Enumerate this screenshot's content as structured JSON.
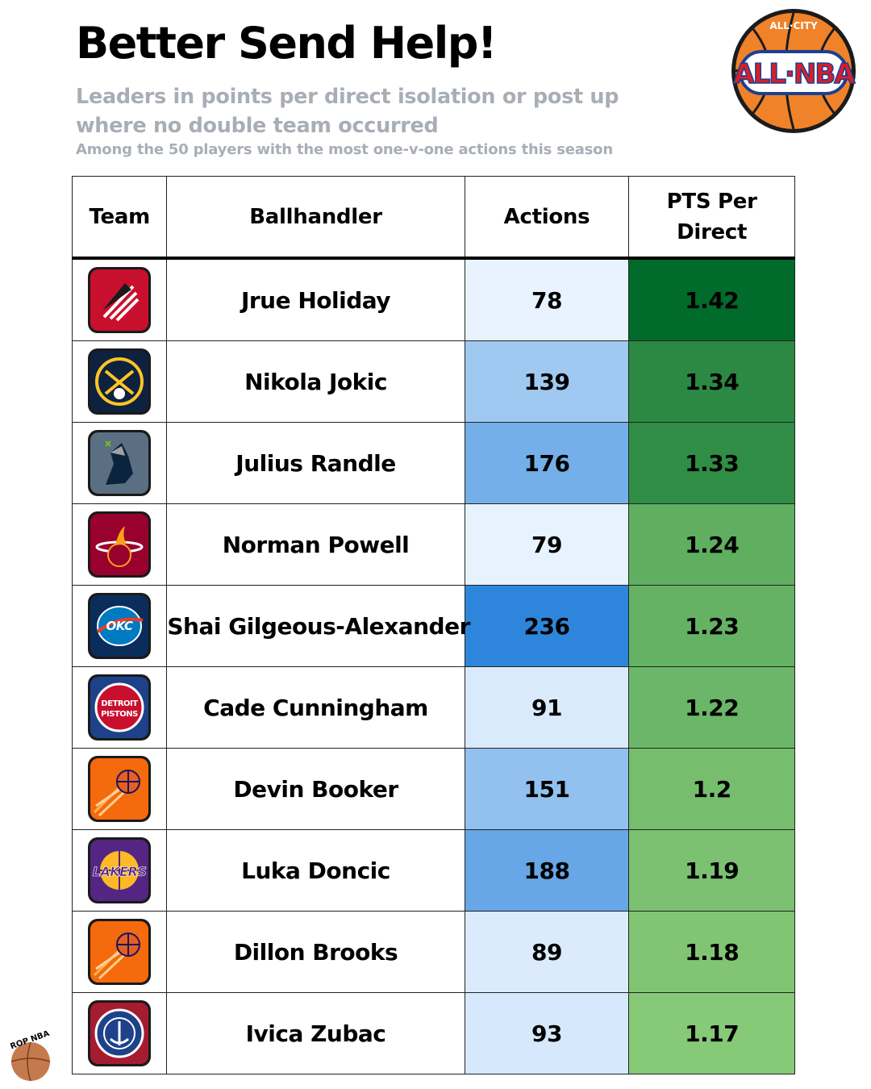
{
  "header": {
    "title": "Better Send Help!",
    "subtitle": "Leaders in points per direct isolation or post up where no double team occurred",
    "note": "Among the 50 players with the most one-v-one actions this season",
    "brand_logo": "all-city-all-nba-basketball-logo",
    "brand_logo_text": "ALL·NBA",
    "brand_logo_top": "ALL·CITY",
    "corner_logo": "rop-nba-basketball-logo",
    "corner_logo_text": "ROP NBA"
  },
  "colors": {
    "actions_low": "#e8f3ff",
    "actions_high": "#2e86dc",
    "pts_low": "#86c977",
    "pts_high": "#006b2a",
    "subtitle_gray": "#a8aeb6"
  },
  "chart_data": {
    "type": "table",
    "columns": [
      "Team",
      "Ballhandler",
      "Actions",
      "PTS Per Direct"
    ],
    "rows": [
      {
        "team_logo": "portland-trail-blazers-logo",
        "team_color": "#c8102e",
        "player": "Jrue Holiday",
        "actions": 78,
        "pts_per_direct": "1.42"
      },
      {
        "team_logo": "denver-nuggets-logo",
        "team_color": "#0e2240",
        "player": "Nikola Jokic",
        "actions": 139,
        "pts_per_direct": "1.34"
      },
      {
        "team_logo": "minnesota-timberwolves-logo",
        "team_color": "#5b6f82",
        "player": "Julius Randle",
        "actions": 176,
        "pts_per_direct": "1.33"
      },
      {
        "team_logo": "miami-heat-logo",
        "team_color": "#98002e",
        "player": "Norman Powell",
        "actions": 79,
        "pts_per_direct": "1.24"
      },
      {
        "team_logo": "oklahoma-city-thunder-logo",
        "team_color": "#0b2d5b",
        "player": "Shai Gilgeous-Alexander",
        "actions": 236,
        "pts_per_direct": "1.23"
      },
      {
        "team_logo": "detroit-pistons-logo",
        "team_color": "#1d428a",
        "player": "Cade Cunningham",
        "actions": 91,
        "pts_per_direct": "1.22"
      },
      {
        "team_logo": "phoenix-suns-logo",
        "team_color": "#f46a0c",
        "player": "Devin Booker",
        "actions": 151,
        "pts_per_direct": "1.2"
      },
      {
        "team_logo": "los-angeles-lakers-logo",
        "team_color": "#552583",
        "player": "Luka Doncic",
        "actions": 188,
        "pts_per_direct": "1.19"
      },
      {
        "team_logo": "phoenix-suns-logo",
        "team_color": "#f46a0c",
        "player": "Dillon Brooks",
        "actions": 89,
        "pts_per_direct": "1.18"
      },
      {
        "team_logo": "la-clippers-logo",
        "team_color": "#a51c30",
        "player": "Ivica Zubac",
        "actions": 93,
        "pts_per_direct": "1.17"
      }
    ]
  }
}
